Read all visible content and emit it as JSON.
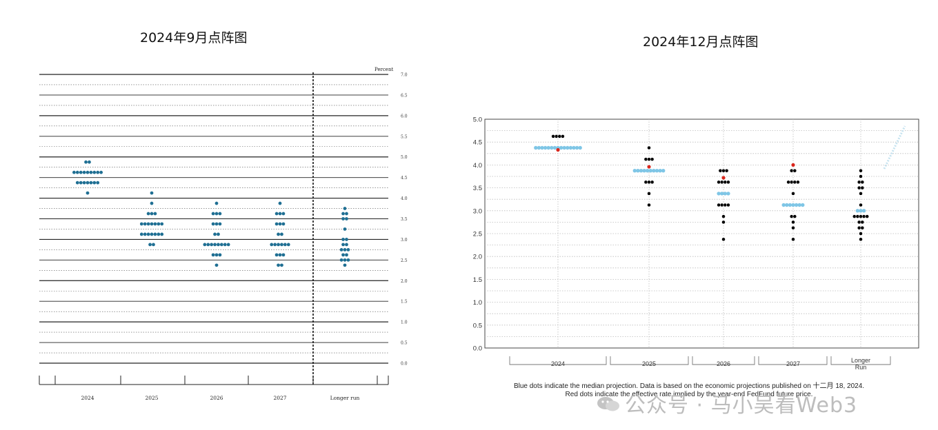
{
  "titles": {
    "left": "2024年9月点阵图",
    "right": "2024年12月点阵图"
  },
  "watermark": "公众号 · 马小吴看Web3",
  "colors": {
    "sep_dot": "#1f6f93",
    "dec_median": "#7fc6e6",
    "dec_dot": "#000000",
    "dec_red": "#d9261c"
  },
  "chart_data": [
    {
      "type": "scatter",
      "title": "2024年9月点阵图",
      "ylabel": "Percent",
      "ylim": [
        0,
        7
      ],
      "yticks": [
        "7.0",
        "6.5",
        "6.0",
        "5.5",
        "5.0",
        "4.5",
        "4.0",
        "3.5",
        "3.0",
        "2.5",
        "2.0",
        "1.5",
        "1.0",
        "0.5",
        "0.0"
      ],
      "categories": [
        "2024",
        "2025",
        "2026",
        "2027",
        "Longer run"
      ],
      "points": [
        {
          "x": "2024",
          "y": 4.875,
          "n": 2
        },
        {
          "x": "2024",
          "y": 4.625,
          "n": 9
        },
        {
          "x": "2024",
          "y": 4.375,
          "n": 7
        },
        {
          "x": "2024",
          "y": 4.125,
          "n": 1
        },
        {
          "x": "2025",
          "y": 4.125,
          "n": 1
        },
        {
          "x": "2025",
          "y": 3.875,
          "n": 1
        },
        {
          "x": "2025",
          "y": 3.625,
          "n": 3
        },
        {
          "x": "2025",
          "y": 3.375,
          "n": 7
        },
        {
          "x": "2025",
          "y": 3.125,
          "n": 7
        },
        {
          "x": "2025",
          "y": 2.875,
          "n": 2
        },
        {
          "x": "2026",
          "y": 3.875,
          "n": 1
        },
        {
          "x": "2026",
          "y": 3.625,
          "n": 3
        },
        {
          "x": "2026",
          "y": 3.375,
          "n": 3
        },
        {
          "x": "2026",
          "y": 3.125,
          "n": 2
        },
        {
          "x": "2026",
          "y": 2.875,
          "n": 8
        },
        {
          "x": "2026",
          "y": 2.625,
          "n": 3
        },
        {
          "x": "2026",
          "y": 2.375,
          "n": 1
        },
        {
          "x": "2027",
          "y": 3.875,
          "n": 1
        },
        {
          "x": "2027",
          "y": 3.625,
          "n": 3
        },
        {
          "x": "2027",
          "y": 3.375,
          "n": 3
        },
        {
          "x": "2027",
          "y": 3.125,
          "n": 2
        },
        {
          "x": "2027",
          "y": 2.875,
          "n": 6
        },
        {
          "x": "2027",
          "y": 2.625,
          "n": 3
        },
        {
          "x": "2027",
          "y": 2.375,
          "n": 2
        },
        {
          "x": "Longer run",
          "y": 3.75,
          "n": 1
        },
        {
          "x": "Longer run",
          "y": 3.625,
          "n": 2
        },
        {
          "x": "Longer run",
          "y": 3.5,
          "n": 2
        },
        {
          "x": "Longer run",
          "y": 3.25,
          "n": 1
        },
        {
          "x": "Longer run",
          "y": 3.0,
          "n": 2
        },
        {
          "x": "Longer run",
          "y": 2.875,
          "n": 2
        },
        {
          "x": "Longer run",
          "y": 2.75,
          "n": 3
        },
        {
          "x": "Longer run",
          "y": 2.625,
          "n": 2
        },
        {
          "x": "Longer run",
          "y": 2.5,
          "n": 3
        },
        {
          "x": "Longer run",
          "y": 2.375,
          "n": 1
        }
      ]
    },
    {
      "type": "scatter",
      "title": "2024年12月点阵图",
      "ylim": [
        0,
        5
      ],
      "yticks": [
        "5.0",
        "4.5",
        "4.0",
        "3.5",
        "3.0",
        "2.5",
        "2.0",
        "1.5",
        "1.0",
        "0.5",
        "0.0"
      ],
      "categories": [
        "2024",
        "2025",
        "2026",
        "2027",
        "Longer Run"
      ],
      "points": [
        {
          "x": "2024",
          "y": 4.625,
          "n": 4,
          "kind": "dot"
        },
        {
          "x": "2024",
          "y": 4.375,
          "n": 15,
          "kind": "median"
        },
        {
          "x": "2024",
          "y": 4.33,
          "n": 1,
          "kind": "red"
        },
        {
          "x": "2025",
          "y": 4.375,
          "n": 1,
          "kind": "dot"
        },
        {
          "x": "2025",
          "y": 4.125,
          "n": 3,
          "kind": "dot"
        },
        {
          "x": "2025",
          "y": 3.96,
          "n": 1,
          "kind": "red"
        },
        {
          "x": "2025",
          "y": 3.875,
          "n": 10,
          "kind": "median"
        },
        {
          "x": "2025",
          "y": 3.625,
          "n": 3,
          "kind": "dot"
        },
        {
          "x": "2025",
          "y": 3.375,
          "n": 1,
          "kind": "dot"
        },
        {
          "x": "2025",
          "y": 3.125,
          "n": 1,
          "kind": "dot"
        },
        {
          "x": "2026",
          "y": 3.875,
          "n": 3,
          "kind": "dot"
        },
        {
          "x": "2026",
          "y": 3.72,
          "n": 1,
          "kind": "red"
        },
        {
          "x": "2026",
          "y": 3.625,
          "n": 4,
          "kind": "dot"
        },
        {
          "x": "2026",
          "y": 3.375,
          "n": 4,
          "kind": "median"
        },
        {
          "x": "2026",
          "y": 3.125,
          "n": 4,
          "kind": "dot"
        },
        {
          "x": "2026",
          "y": 2.875,
          "n": 1,
          "kind": "dot"
        },
        {
          "x": "2026",
          "y": 2.75,
          "n": 1,
          "kind": "dot"
        },
        {
          "x": "2026",
          "y": 2.375,
          "n": 1,
          "kind": "dot"
        },
        {
          "x": "2027",
          "y": 4.0,
          "n": 1,
          "kind": "red"
        },
        {
          "x": "2027",
          "y": 3.875,
          "n": 2,
          "kind": "dot"
        },
        {
          "x": "2027",
          "y": 3.625,
          "n": 4,
          "kind": "dot"
        },
        {
          "x": "2027",
          "y": 3.375,
          "n": 1,
          "kind": "dot"
        },
        {
          "x": "2027",
          "y": 3.125,
          "n": 7,
          "kind": "median"
        },
        {
          "x": "2027",
          "y": 2.875,
          "n": 2,
          "kind": "dot"
        },
        {
          "x": "2027",
          "y": 2.75,
          "n": 1,
          "kind": "dot"
        },
        {
          "x": "2027",
          "y": 2.625,
          "n": 1,
          "kind": "dot"
        },
        {
          "x": "2027",
          "y": 2.375,
          "n": 1,
          "kind": "dot"
        },
        {
          "x": "Longer Run",
          "y": 3.875,
          "n": 1,
          "kind": "dot"
        },
        {
          "x": "Longer Run",
          "y": 3.75,
          "n": 1,
          "kind": "dot"
        },
        {
          "x": "Longer Run",
          "y": 3.625,
          "n": 2,
          "kind": "dot"
        },
        {
          "x": "Longer Run",
          "y": 3.5,
          "n": 2,
          "kind": "dot"
        },
        {
          "x": "Longer Run",
          "y": 3.375,
          "n": 1,
          "kind": "dot"
        },
        {
          "x": "Longer Run",
          "y": 3.125,
          "n": 1,
          "kind": "dot"
        },
        {
          "x": "Longer Run",
          "y": 3.0,
          "n": 3,
          "kind": "median"
        },
        {
          "x": "Longer Run",
          "y": 2.875,
          "n": 5,
          "kind": "dot"
        },
        {
          "x": "Longer Run",
          "y": 2.75,
          "n": 2,
          "kind": "dot"
        },
        {
          "x": "Longer Run",
          "y": 2.625,
          "n": 2,
          "kind": "dot"
        },
        {
          "x": "Longer Run",
          "y": 2.5,
          "n": 1,
          "kind": "dot"
        },
        {
          "x": "Longer Run",
          "y": 2.375,
          "n": 1,
          "kind": "dot"
        }
      ],
      "notes": [
        "Blue dots indicate the median projection. Data is based on the economic projections published on 十二月 18, 2024.",
        "Red dots indicate the effective rate implied by the year-end FedFund future price."
      ]
    }
  ]
}
